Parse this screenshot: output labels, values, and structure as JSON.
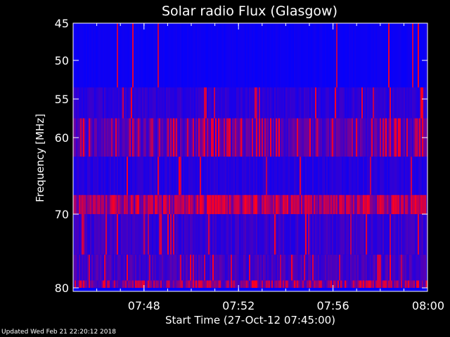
{
  "chart_data": {
    "type": "heatmap",
    "title": "Solar radio Flux (Glasgow)",
    "xlabel": "Start Time (27-Oct-12 07:45:00)",
    "ylabel": "Frequency [MHz]",
    "x_range_minutes": [
      0,
      15
    ],
    "x_ticks": [
      {
        "minute": 3,
        "label": "07:48"
      },
      {
        "minute": 7,
        "label": "07:52"
      },
      {
        "minute": 11,
        "label": "07:56"
      },
      {
        "minute": 15,
        "label": "08:00"
      }
    ],
    "y_range": [
      45,
      80
    ],
    "y_ticks": [
      45,
      50,
      55,
      60,
      70,
      80
    ],
    "colormap": {
      "low": "#0000ff",
      "high": "#ff0000"
    },
    "bands": [
      {
        "from": 45.0,
        "to": 53.5,
        "intensity": 0.05,
        "red_density": 0.02
      },
      {
        "from": 53.5,
        "to": 57.5,
        "intensity": 0.18,
        "red_density": 0.05
      },
      {
        "from": 57.5,
        "to": 62.5,
        "intensity": 0.35,
        "red_density": 0.22
      },
      {
        "from": 62.5,
        "to": 67.5,
        "intensity": 0.15,
        "red_density": 0.05
      },
      {
        "from": 67.5,
        "to": 70.0,
        "intensity": 0.6,
        "red_density": 0.5
      },
      {
        "from": 70.0,
        "to": 75.5,
        "intensity": 0.22,
        "red_density": 0.08
      },
      {
        "from": 75.5,
        "to": 79.0,
        "intensity": 0.28,
        "red_density": 0.12
      },
      {
        "from": 79.0,
        "to": 80.0,
        "intensity": 0.45,
        "red_density": 0.35
      }
    ]
  },
  "footer": "Updated Wed Feb 21 22:20:12 2018",
  "colors": {
    "background": "#000000",
    "axis": "#ffffff"
  }
}
